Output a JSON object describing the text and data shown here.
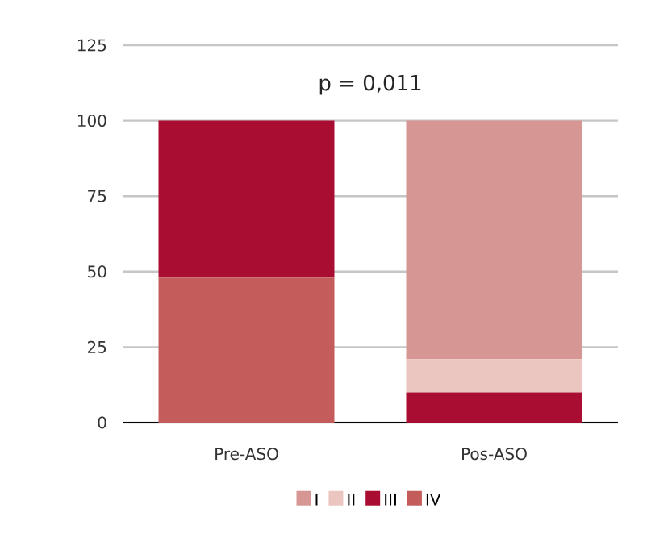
{
  "chart_data": {
    "type": "bar",
    "stacked": true,
    "categories": [
      "Pre-ASO",
      "Pos-ASO"
    ],
    "series": [
      {
        "name": "IV",
        "color": "#c45c5c",
        "values": [
          48,
          0
        ]
      },
      {
        "name": "III",
        "color": "#aa0d32",
        "values": [
          52,
          10
        ]
      },
      {
        "name": "II",
        "color": "#ebc5c0",
        "values": [
          0,
          11
        ]
      },
      {
        "name": "I",
        "color": "#d69693",
        "values": [
          0,
          79
        ]
      }
    ],
    "ylim": [
      0,
      125
    ],
    "yticks": [
      0,
      25,
      50,
      75,
      100,
      125
    ],
    "grid": "y",
    "legend": "bottom",
    "annotations": [
      "p = 0,011"
    ]
  }
}
